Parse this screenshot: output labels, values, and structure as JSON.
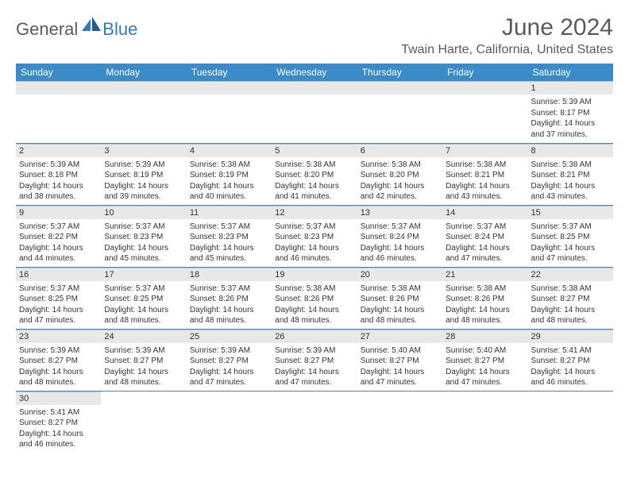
{
  "logo": {
    "general": "General",
    "blue": "Blue"
  },
  "title": "June 2024",
  "location": "Twain Harte, California, United States",
  "colors": {
    "header_bg": "#3b8bc9",
    "header_text": "#ffffff",
    "daynum_bg": "#e8e8e8",
    "border": "#3b8bc9",
    "text": "#333333",
    "title_text": "#5a5a5a",
    "logo_blue": "#2b7bbf"
  },
  "weekdays": [
    "Sunday",
    "Monday",
    "Tuesday",
    "Wednesday",
    "Thursday",
    "Friday",
    "Saturday"
  ],
  "weeks": [
    [
      null,
      null,
      null,
      null,
      null,
      null,
      {
        "n": "1",
        "sunrise": "Sunrise: 5:39 AM",
        "sunset": "Sunset: 8:17 PM",
        "daylight": "Daylight: 14 hours and 37 minutes."
      }
    ],
    [
      {
        "n": "2",
        "sunrise": "Sunrise: 5:39 AM",
        "sunset": "Sunset: 8:18 PM",
        "daylight": "Daylight: 14 hours and 38 minutes."
      },
      {
        "n": "3",
        "sunrise": "Sunrise: 5:39 AM",
        "sunset": "Sunset: 8:19 PM",
        "daylight": "Daylight: 14 hours and 39 minutes."
      },
      {
        "n": "4",
        "sunrise": "Sunrise: 5:38 AM",
        "sunset": "Sunset: 8:19 PM",
        "daylight": "Daylight: 14 hours and 40 minutes."
      },
      {
        "n": "5",
        "sunrise": "Sunrise: 5:38 AM",
        "sunset": "Sunset: 8:20 PM",
        "daylight": "Daylight: 14 hours and 41 minutes."
      },
      {
        "n": "6",
        "sunrise": "Sunrise: 5:38 AM",
        "sunset": "Sunset: 8:20 PM",
        "daylight": "Daylight: 14 hours and 42 minutes."
      },
      {
        "n": "7",
        "sunrise": "Sunrise: 5:38 AM",
        "sunset": "Sunset: 8:21 PM",
        "daylight": "Daylight: 14 hours and 43 minutes."
      },
      {
        "n": "8",
        "sunrise": "Sunrise: 5:38 AM",
        "sunset": "Sunset: 8:21 PM",
        "daylight": "Daylight: 14 hours and 43 minutes."
      }
    ],
    [
      {
        "n": "9",
        "sunrise": "Sunrise: 5:37 AM",
        "sunset": "Sunset: 8:22 PM",
        "daylight": "Daylight: 14 hours and 44 minutes."
      },
      {
        "n": "10",
        "sunrise": "Sunrise: 5:37 AM",
        "sunset": "Sunset: 8:23 PM",
        "daylight": "Daylight: 14 hours and 45 minutes."
      },
      {
        "n": "11",
        "sunrise": "Sunrise: 5:37 AM",
        "sunset": "Sunset: 8:23 PM",
        "daylight": "Daylight: 14 hours and 45 minutes."
      },
      {
        "n": "12",
        "sunrise": "Sunrise: 5:37 AM",
        "sunset": "Sunset: 8:23 PM",
        "daylight": "Daylight: 14 hours and 46 minutes."
      },
      {
        "n": "13",
        "sunrise": "Sunrise: 5:37 AM",
        "sunset": "Sunset: 8:24 PM",
        "daylight": "Daylight: 14 hours and 46 minutes."
      },
      {
        "n": "14",
        "sunrise": "Sunrise: 5:37 AM",
        "sunset": "Sunset: 8:24 PM",
        "daylight": "Daylight: 14 hours and 47 minutes."
      },
      {
        "n": "15",
        "sunrise": "Sunrise: 5:37 AM",
        "sunset": "Sunset: 8:25 PM",
        "daylight": "Daylight: 14 hours and 47 minutes."
      }
    ],
    [
      {
        "n": "16",
        "sunrise": "Sunrise: 5:37 AM",
        "sunset": "Sunset: 8:25 PM",
        "daylight": "Daylight: 14 hours and 47 minutes."
      },
      {
        "n": "17",
        "sunrise": "Sunrise: 5:37 AM",
        "sunset": "Sunset: 8:25 PM",
        "daylight": "Daylight: 14 hours and 48 minutes."
      },
      {
        "n": "18",
        "sunrise": "Sunrise: 5:37 AM",
        "sunset": "Sunset: 8:26 PM",
        "daylight": "Daylight: 14 hours and 48 minutes."
      },
      {
        "n": "19",
        "sunrise": "Sunrise: 5:38 AM",
        "sunset": "Sunset: 8:26 PM",
        "daylight": "Daylight: 14 hours and 48 minutes."
      },
      {
        "n": "20",
        "sunrise": "Sunrise: 5:38 AM",
        "sunset": "Sunset: 8:26 PM",
        "daylight": "Daylight: 14 hours and 48 minutes."
      },
      {
        "n": "21",
        "sunrise": "Sunrise: 5:38 AM",
        "sunset": "Sunset: 8:26 PM",
        "daylight": "Daylight: 14 hours and 48 minutes."
      },
      {
        "n": "22",
        "sunrise": "Sunrise: 5:38 AM",
        "sunset": "Sunset: 8:27 PM",
        "daylight": "Daylight: 14 hours and 48 minutes."
      }
    ],
    [
      {
        "n": "23",
        "sunrise": "Sunrise: 5:39 AM",
        "sunset": "Sunset: 8:27 PM",
        "daylight": "Daylight: 14 hours and 48 minutes."
      },
      {
        "n": "24",
        "sunrise": "Sunrise: 5:39 AM",
        "sunset": "Sunset: 8:27 PM",
        "daylight": "Daylight: 14 hours and 48 minutes."
      },
      {
        "n": "25",
        "sunrise": "Sunrise: 5:39 AM",
        "sunset": "Sunset: 8:27 PM",
        "daylight": "Daylight: 14 hours and 47 minutes."
      },
      {
        "n": "26",
        "sunrise": "Sunrise: 5:39 AM",
        "sunset": "Sunset: 8:27 PM",
        "daylight": "Daylight: 14 hours and 47 minutes."
      },
      {
        "n": "27",
        "sunrise": "Sunrise: 5:40 AM",
        "sunset": "Sunset: 8:27 PM",
        "daylight": "Daylight: 14 hours and 47 minutes."
      },
      {
        "n": "28",
        "sunrise": "Sunrise: 5:40 AM",
        "sunset": "Sunset: 8:27 PM",
        "daylight": "Daylight: 14 hours and 47 minutes."
      },
      {
        "n": "29",
        "sunrise": "Sunrise: 5:41 AM",
        "sunset": "Sunset: 8:27 PM",
        "daylight": "Daylight: 14 hours and 46 minutes."
      }
    ],
    [
      {
        "n": "30",
        "sunrise": "Sunrise: 5:41 AM",
        "sunset": "Sunset: 8:27 PM",
        "daylight": "Daylight: 14 hours and 46 minutes."
      },
      null,
      null,
      null,
      null,
      null,
      null
    ]
  ]
}
